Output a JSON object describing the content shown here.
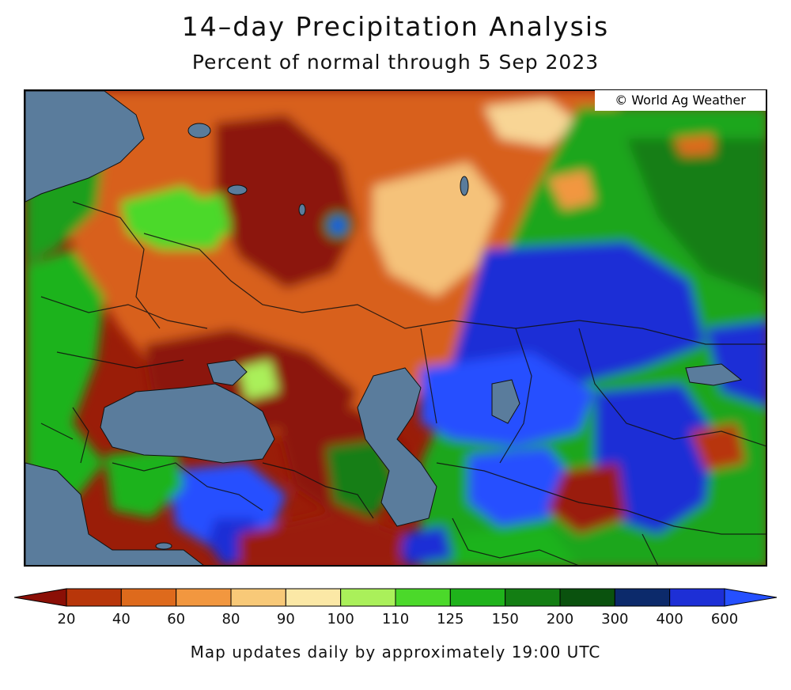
{
  "title": "14–day Precipitation Analysis",
  "subtitle": "Percent of normal through 5 Sep 2023",
  "credit": "© World Ag Weather",
  "footer": "Map updates daily by approximately 19:00 UTC",
  "legend": {
    "colors": [
      "#8b0f06",
      "#b8360a",
      "#de6a1c",
      "#f2973f",
      "#f8c978",
      "#fbe8a6",
      "#aaf05a",
      "#4bd92a",
      "#1fb31b",
      "#137e13",
      "#0a520e",
      "#0c2a6b",
      "#1d2fd6",
      "#2550ff"
    ],
    "labels": [
      "20",
      "40",
      "60",
      "80",
      "90",
      "100",
      "110",
      "125",
      "150",
      "200",
      "300",
      "400",
      "600"
    ]
  },
  "map": {
    "water_color": "#5a7c9c",
    "border_color": "#111111"
  }
}
